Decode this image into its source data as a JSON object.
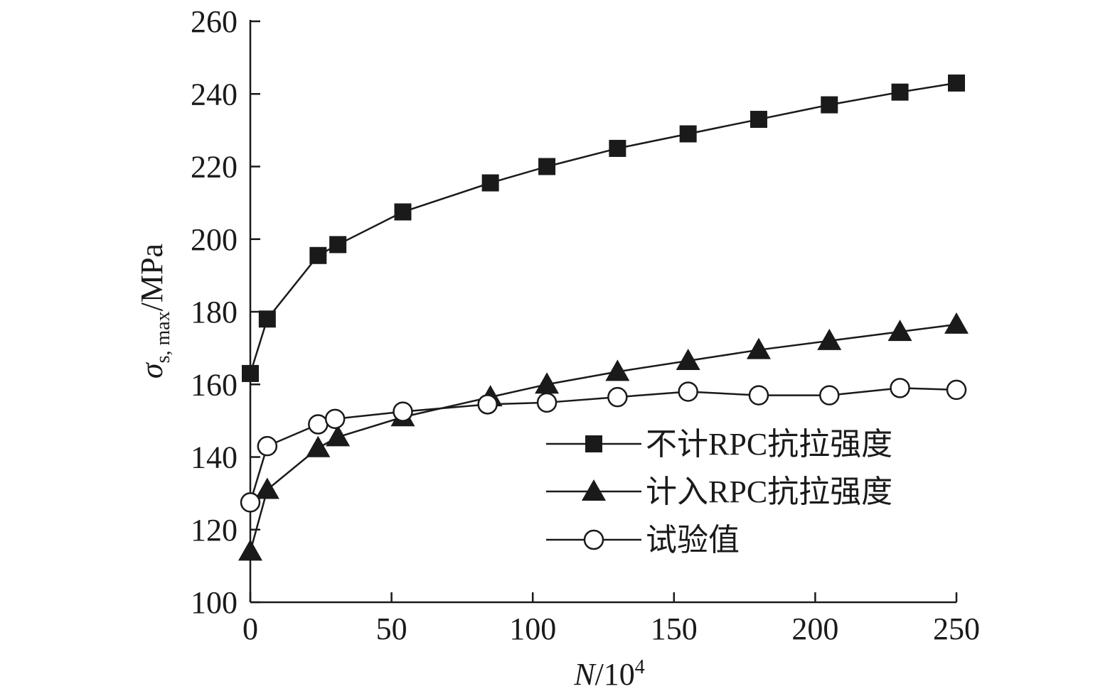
{
  "chart_data": {
    "type": "line",
    "xlabel": {
      "italic": "N",
      "rest": "/10",
      "sup": "4"
    },
    "ylabel": {
      "sigma": "σ",
      "sub": "s, max",
      "rest": "/MPa"
    },
    "xlim": [
      0,
      250
    ],
    "ylim": [
      100,
      260
    ],
    "xticks": [
      0,
      50,
      100,
      150,
      200,
      250
    ],
    "yticks": [
      100,
      120,
      140,
      160,
      180,
      200,
      220,
      240,
      260
    ],
    "grid": false,
    "legend_position": "lower-right",
    "color": "#1a1a1a",
    "series": [
      {
        "name": "不计RPC抗拉强度",
        "marker": "filled-square",
        "x": [
          0,
          6,
          24,
          31,
          54,
          85,
          105,
          130,
          155,
          180,
          205,
          230,
          250
        ],
        "y": [
          163,
          178,
          195.5,
          198.5,
          207.5,
          215.5,
          220,
          225,
          229,
          233,
          237,
          240.5,
          243
        ]
      },
      {
        "name": "计入RPC抗拉强度",
        "marker": "filled-triangle",
        "x": [
          0,
          6,
          24,
          31,
          54,
          85,
          105,
          130,
          155,
          180,
          205,
          230,
          250
        ],
        "y": [
          114,
          131,
          142.5,
          145.5,
          151,
          156.5,
          160,
          163.5,
          166.5,
          169.5,
          172,
          174.5,
          176.5
        ]
      },
      {
        "name": "试验值",
        "marker": "open-circle",
        "x": [
          0,
          6,
          24,
          30,
          54,
          84,
          105,
          130,
          155,
          180,
          205,
          230,
          250
        ],
        "y": [
          127.5,
          143,
          149,
          150.5,
          152.5,
          154.5,
          155,
          156.5,
          158,
          157,
          157,
          159,
          158.5
        ]
      }
    ]
  }
}
